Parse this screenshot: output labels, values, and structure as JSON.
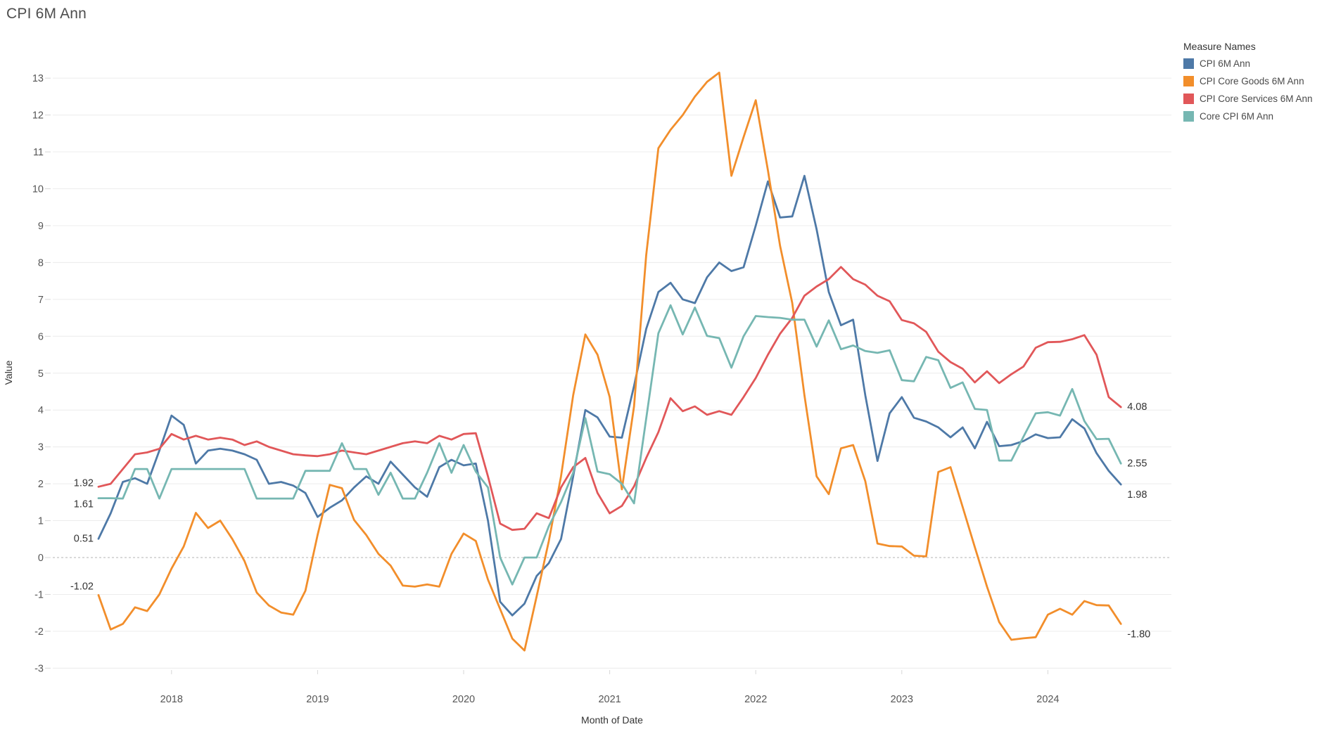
{
  "title": "CPI 6M Ann",
  "legend": {
    "title": "Measure Names"
  },
  "axes": {
    "y_title": "Value",
    "x_title": "Month of Date",
    "y_ticks": [
      -3,
      -2,
      -1,
      0,
      1,
      2,
      3,
      4,
      5,
      6,
      7,
      8,
      9,
      10,
      11,
      12,
      13
    ],
    "x_tick_labels": [
      "2018",
      "2019",
      "2020",
      "2021",
      "2022",
      "2023",
      "2024"
    ],
    "x_tick_month_index": [
      6,
      18,
      30,
      42,
      54,
      66,
      78
    ]
  },
  "chart_data": {
    "type": "line",
    "title": "CPI 6M Ann",
    "xlabel": "Month of Date",
    "ylabel": "Value",
    "ylim": [
      -3.5,
      13.8
    ],
    "grid": "horizontal",
    "zero_line": "dashed",
    "legend_position": "top-right",
    "x": [
      "2017-07",
      "2017-08",
      "2017-09",
      "2017-10",
      "2017-11",
      "2017-12",
      "2018-01",
      "2018-02",
      "2018-03",
      "2018-04",
      "2018-05",
      "2018-06",
      "2018-07",
      "2018-08",
      "2018-09",
      "2018-10",
      "2018-11",
      "2018-12",
      "2019-01",
      "2019-02",
      "2019-03",
      "2019-04",
      "2019-05",
      "2019-06",
      "2019-07",
      "2019-08",
      "2019-09",
      "2019-10",
      "2019-11",
      "2019-12",
      "2020-01",
      "2020-02",
      "2020-03",
      "2020-04",
      "2020-05",
      "2020-06",
      "2020-07",
      "2020-08",
      "2020-09",
      "2020-10",
      "2020-11",
      "2020-12",
      "2021-01",
      "2021-02",
      "2021-03",
      "2021-04",
      "2021-05",
      "2021-06",
      "2021-07",
      "2021-08",
      "2021-09",
      "2021-10",
      "2021-11",
      "2021-12",
      "2022-01",
      "2022-02",
      "2022-03",
      "2022-04",
      "2022-05",
      "2022-06",
      "2022-07",
      "2022-08",
      "2022-09",
      "2022-10",
      "2022-11",
      "2022-12",
      "2023-01",
      "2023-02",
      "2023-03",
      "2023-04",
      "2023-05",
      "2023-06",
      "2023-07",
      "2023-08",
      "2023-09",
      "2023-10",
      "2023-11",
      "2023-12",
      "2024-01",
      "2024-02",
      "2024-03",
      "2024-04",
      "2024-05",
      "2024-06",
      "2024-07"
    ],
    "series": [
      {
        "name": "CPI 6M Ann",
        "color": "#4e79a7",
        "start_label": "0.51",
        "end_label": "1.98",
        "values": [
          0.51,
          1.2,
          2.05,
          2.15,
          2.0,
          2.9,
          3.85,
          3.6,
          2.55,
          2.9,
          2.95,
          2.9,
          2.8,
          2.65,
          2.0,
          2.05,
          1.95,
          1.75,
          1.1,
          1.35,
          1.55,
          1.9,
          2.2,
          2.0,
          2.6,
          2.25,
          1.9,
          1.65,
          2.45,
          2.65,
          2.5,
          2.55,
          1.0,
          -1.2,
          -1.57,
          -1.25,
          -0.5,
          -0.15,
          0.5,
          2.2,
          4.0,
          3.8,
          3.28,
          3.25,
          4.65,
          6.2,
          7.2,
          7.45,
          7.0,
          6.9,
          7.6,
          8.0,
          7.77,
          7.87,
          9.0,
          10.2,
          9.22,
          9.25,
          10.35,
          8.9,
          7.2,
          6.3,
          6.45,
          4.4,
          2.62,
          3.91,
          4.35,
          3.79,
          3.69,
          3.53,
          3.26,
          3.53,
          2.96,
          3.68,
          3.02,
          3.05,
          3.16,
          3.34,
          3.24,
          3.26,
          3.75,
          3.5,
          2.83,
          2.35,
          1.98
        ]
      },
      {
        "name": "CPI Core Goods 6M Ann",
        "color": "#f28e2b",
        "start_label": "-1.02",
        "end_label": "-1.80",
        "values": [
          -1.02,
          -1.95,
          -1.8,
          -1.35,
          -1.45,
          -1.0,
          -0.3,
          0.3,
          1.21,
          0.8,
          1.0,
          0.5,
          -0.1,
          -0.95,
          -1.3,
          -1.49,
          -1.55,
          -0.9,
          0.61,
          1.97,
          1.88,
          1.02,
          0.61,
          0.1,
          -0.22,
          -0.76,
          -0.79,
          -0.73,
          -0.79,
          0.1,
          0.65,
          0.45,
          -0.6,
          -1.4,
          -2.2,
          -2.52,
          -1.05,
          0.45,
          2.2,
          4.4,
          6.05,
          5.5,
          4.35,
          1.85,
          4.1,
          8.2,
          11.1,
          11.6,
          12.0,
          12.5,
          12.9,
          13.15,
          10.35,
          11.4,
          12.4,
          10.5,
          8.45,
          6.9,
          4.4,
          2.2,
          1.72,
          2.96,
          3.05,
          2.07,
          0.38,
          0.31,
          0.3,
          0.05,
          0.03,
          2.32,
          2.45,
          1.37,
          0.28,
          -0.79,
          -1.75,
          -2.23,
          -2.19,
          -2.16,
          -1.55,
          -1.39,
          -1.55,
          -1.18,
          -1.29,
          -1.3,
          -1.8
        ]
      },
      {
        "name": "CPI Core Services 6M Ann",
        "color": "#e15759",
        "start_label": "1.92",
        "end_label": "4.08",
        "values": [
          1.92,
          2.0,
          2.4,
          2.8,
          2.85,
          2.95,
          3.35,
          3.2,
          3.3,
          3.2,
          3.25,
          3.2,
          3.05,
          3.15,
          3.0,
          2.9,
          2.8,
          2.77,
          2.75,
          2.8,
          2.9,
          2.85,
          2.8,
          2.9,
          3.0,
          3.1,
          3.15,
          3.1,
          3.3,
          3.2,
          3.35,
          3.37,
          2.2,
          0.92,
          0.75,
          0.78,
          1.2,
          1.07,
          1.9,
          2.45,
          2.7,
          1.75,
          1.2,
          1.4,
          1.93,
          2.7,
          3.4,
          4.32,
          3.97,
          4.1,
          3.87,
          3.97,
          3.87,
          4.35,
          4.87,
          5.5,
          6.07,
          6.5,
          7.1,
          7.35,
          7.55,
          7.88,
          7.55,
          7.4,
          7.1,
          6.95,
          6.44,
          6.35,
          6.12,
          5.58,
          5.3,
          5.12,
          4.75,
          5.05,
          4.73,
          4.97,
          5.18,
          5.69,
          5.84,
          5.85,
          5.92,
          6.03,
          5.5,
          4.35,
          4.08
        ]
      },
      {
        "name": "Core CPI 6M Ann",
        "color": "#76b7b2",
        "start_label": "1.61",
        "end_label": "2.55",
        "values": [
          1.61,
          1.61,
          1.6,
          2.4,
          2.4,
          1.6,
          2.4,
          2.4,
          2.4,
          2.4,
          2.4,
          2.4,
          2.4,
          1.6,
          1.6,
          1.6,
          1.6,
          2.35,
          2.35,
          2.35,
          3.1,
          2.4,
          2.4,
          1.7,
          2.3,
          1.6,
          1.6,
          2.3,
          3.1,
          2.3,
          3.05,
          2.33,
          1.9,
          0.0,
          -0.73,
          0.0,
          0.0,
          0.85,
          1.5,
          2.3,
          3.78,
          2.33,
          2.26,
          2.0,
          1.47,
          3.77,
          6.08,
          6.84,
          6.05,
          6.78,
          6.01,
          5.95,
          5.15,
          6.0,
          6.55,
          6.52,
          6.5,
          6.45,
          6.45,
          5.72,
          6.43,
          5.65,
          5.75,
          5.6,
          5.55,
          5.62,
          4.81,
          4.78,
          5.44,
          5.35,
          4.6,
          4.75,
          4.03,
          4.0,
          2.63,
          2.63,
          3.28,
          3.91,
          3.94,
          3.85,
          4.57,
          3.7,
          3.21,
          3.22,
          2.55
        ]
      }
    ]
  }
}
